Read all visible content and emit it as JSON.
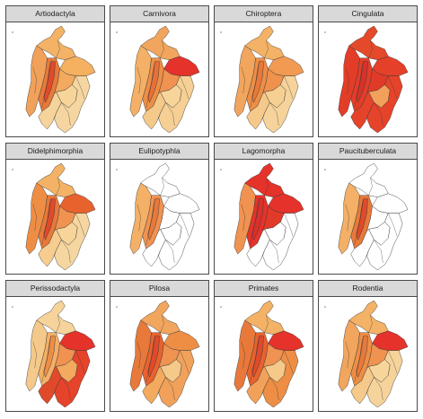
{
  "panels": [
    {
      "title": "Artiodactyla",
      "colors": {
        "north": "#f3b265",
        "west": "#f1a15a",
        "andes": "#e8793a",
        "andes_inner": "#e04a2a",
        "east": "#f5b060",
        "llanos": "#f3a95e",
        "south": "#f6d39a",
        "southeast": "#f7d59a",
        "amazon": "#f6d6a0"
      }
    },
    {
      "title": "Carnivora",
      "colors": {
        "north": "#f1a55d",
        "west": "#f3b066",
        "andes": "#ee8e45",
        "andes_inner": "#e7703a",
        "east": "#e5322a",
        "llanos": "#f09250",
        "south": "#f5c98a",
        "southeast": "#f7d59a",
        "amazon": "#f5cf93"
      }
    },
    {
      "title": "Chiroptera",
      "colors": {
        "north": "#f3b265",
        "west": "#f1a55d",
        "andes": "#ee8e45",
        "andes_inner": "#e8793a",
        "east": "#f29a52",
        "llanos": "#f0914d",
        "south": "#f5c98a",
        "southeast": "#f6cf92",
        "amazon": "#f6d39a"
      }
    },
    {
      "title": "Cingulata",
      "colors": {
        "north": "#e44a2a",
        "west": "#e33d28",
        "andes": "#e33d28",
        "andes_inner": "#d9312a",
        "east": "#e5402a",
        "llanos": "#e23a28",
        "south": "#e5432a",
        "southeast": "#f2a05a",
        "amazon": "#e5432a"
      }
    },
    {
      "title": "Didelphimorphia",
      "colors": {
        "north": "#f3b265",
        "west": "#ee8e45",
        "andes": "#e8793a",
        "andes_inner": "#e04a2a",
        "east": "#e8622e",
        "llanos": "#f09250",
        "south": "#f6cd8f",
        "southeast": "#f7d59a",
        "amazon": "#f6d6a0"
      }
    },
    {
      "title": "Eulipotyphla",
      "colors": {
        "north": "#ffffff",
        "west": "#f3b066",
        "andes": "#f09250",
        "andes_inner": "#e8793a",
        "east": "#ffffff",
        "llanos": "#ffffff",
        "south": "#ffffff",
        "southeast": "#ffffff",
        "amazon": "#ffffff"
      }
    },
    {
      "title": "Lagomorpha",
      "colors": {
        "north": "#e5322a",
        "west": "#f09250",
        "andes": "#e5322a",
        "andes_inner": "#d9312a",
        "east": "#e5322a",
        "llanos": "#e23a28",
        "south": "#ffffff",
        "southeast": "#ffffff",
        "amazon": "#ffffff"
      }
    },
    {
      "title": "Paucituberculata",
      "colors": {
        "north": "#ffffff",
        "west": "#f3b066",
        "andes": "#e8793a",
        "andes_inner": "#e04a2a",
        "east": "#ffffff",
        "llanos": "#ffffff",
        "south": "#ffffff",
        "southeast": "#ffffff",
        "amazon": "#ffffff"
      }
    },
    {
      "title": "Perissodactyla",
      "colors": {
        "north": "#f6d39a",
        "west": "#f5c98a",
        "andes": "#f3b066",
        "andes_inner": "#ee8e45",
        "east": "#e5322a",
        "llanos": "#f09250",
        "south": "#e04a2a",
        "southeast": "#f3a95e",
        "amazon": "#e5432a"
      }
    },
    {
      "title": "Pilosa",
      "colors": {
        "north": "#f1a55d",
        "west": "#e8793a",
        "andes": "#e8622e",
        "andes_inner": "#e04a2a",
        "east": "#ee8e45",
        "llanos": "#f09250",
        "south": "#f3a95e",
        "southeast": "#f5c98a",
        "amazon": "#f1a15a"
      }
    },
    {
      "title": "Primates",
      "colors": {
        "north": "#f3b265",
        "west": "#e8793a",
        "andes": "#e8622e",
        "andes_inner": "#e04a2a",
        "east": "#e5322a",
        "llanos": "#f09250",
        "south": "#f1a15a",
        "southeast": "#f5c98a",
        "amazon": "#ee8e45"
      }
    },
    {
      "title": "Rodentia",
      "colors": {
        "north": "#f3b265",
        "west": "#f1a55d",
        "andes": "#ee8e45",
        "andes_inner": "#e8793a",
        "east": "#e5322a",
        "llanos": "#f09250",
        "south": "#f5c98a",
        "southeast": "#f7d59a",
        "amazon": "#f6d39a"
      }
    }
  ]
}
